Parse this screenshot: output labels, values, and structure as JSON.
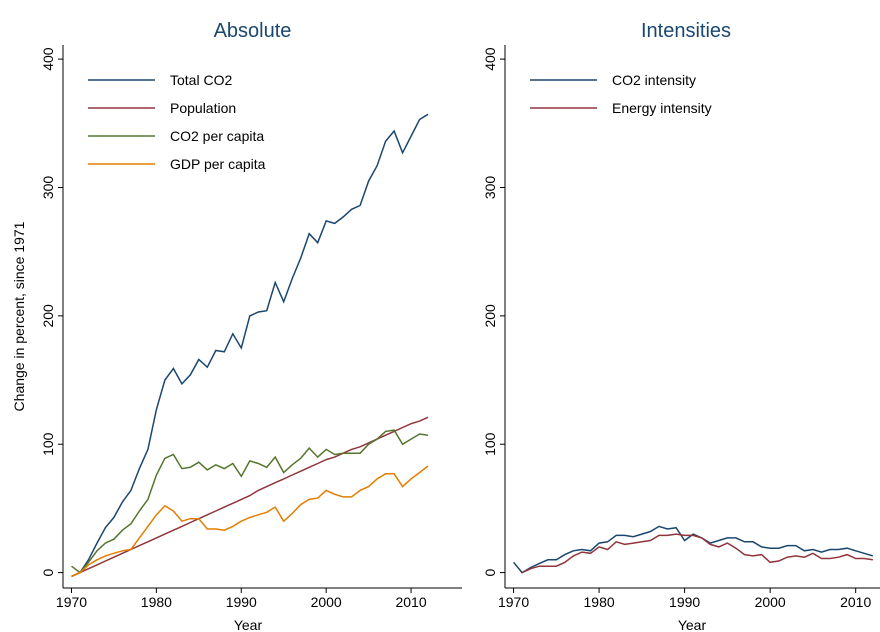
{
  "chart_data": [
    {
      "type": "line",
      "title": "Absolute",
      "y_label": "Change in percent, since 1971",
      "x_label": "Year",
      "x": [
        1970,
        1971,
        1972,
        1973,
        1974,
        1975,
        1976,
        1977,
        1978,
        1979,
        1980,
        1981,
        1982,
        1983,
        1984,
        1985,
        1986,
        1987,
        1988,
        1989,
        1990,
        1991,
        1992,
        1993,
        1994,
        1995,
        1996,
        1997,
        1998,
        1999,
        2000,
        2001,
        2002,
        2003,
        2004,
        2005,
        2006,
        2007,
        2008,
        2009,
        2010,
        2011,
        2012
      ],
      "xlim": [
        1969,
        2016
      ],
      "xticks": [
        1970,
        1980,
        1990,
        2000,
        2010
      ],
      "ylim": [
        -12,
        411
      ],
      "yticks": [
        0,
        100,
        200,
        300,
        400
      ],
      "grid": false,
      "legend": "top-left",
      "series": [
        {
          "name": "Total CO2",
          "color": "#1a476f",
          "values": [
            -3,
            0,
            10,
            23,
            35,
            43,
            55,
            64,
            81,
            96,
            127,
            150,
            159,
            147,
            154,
            166,
            160,
            173,
            172,
            186,
            175,
            200,
            203,
            204,
            226,
            211,
            229,
            245,
            264,
            257,
            274,
            272,
            277,
            283,
            286,
            305,
            317,
            336,
            344,
            327,
            340,
            353,
            357
          ]
        },
        {
          "name": "Population",
          "color": "#90353b",
          "values": [
            -3,
            0,
            3,
            6,
            9,
            12,
            15,
            18,
            21,
            24,
            27,
            30,
            33,
            36,
            39,
            42,
            45,
            48,
            51,
            54,
            57,
            60,
            64,
            67,
            70,
            73,
            76,
            79,
            82,
            85,
            88,
            90,
            93,
            96,
            98,
            101,
            104,
            107,
            110,
            113,
            116,
            118,
            121
          ]
        },
        {
          "name": "CO2 per capita",
          "color": "#55752f",
          "values": [
            5,
            0,
            8,
            17,
            23,
            26,
            33,
            38,
            48,
            57,
            76,
            89,
            92,
            81,
            82,
            86,
            80,
            84,
            81,
            85,
            75,
            87,
            85,
            82,
            90,
            78,
            84,
            89,
            97,
            90,
            96,
            92,
            93,
            93,
            93,
            100,
            104,
            110,
            111,
            100,
            104,
            108,
            107
          ]
        },
        {
          "name": "GDP per capita",
          "color": "#e37e00",
          "values": [
            -3,
            0,
            6,
            10,
            13,
            15,
            17,
            18,
            27,
            36,
            45,
            52,
            48,
            40,
            42,
            42,
            34,
            34,
            33,
            36,
            40,
            43,
            45,
            47,
            51,
            40,
            46,
            53,
            57,
            58,
            64,
            61,
            59,
            59,
            64,
            67,
            73,
            77,
            77,
            67,
            73,
            78,
            83
          ]
        }
      ]
    },
    {
      "type": "line",
      "title": "Intensities",
      "x_label": "Year",
      "x": [
        1970,
        1971,
        1972,
        1973,
        1974,
        1975,
        1976,
        1977,
        1978,
        1979,
        1980,
        1981,
        1982,
        1983,
        1984,
        1985,
        1986,
        1987,
        1988,
        1989,
        1990,
        1991,
        1992,
        1993,
        1994,
        1995,
        1996,
        1997,
        1998,
        1999,
        2000,
        2001,
        2002,
        2003,
        2004,
        2005,
        2006,
        2007,
        2008,
        2009,
        2010,
        2011,
        2012
      ],
      "xlim": [
        1969,
        2016
      ],
      "xticks": [
        1970,
        1980,
        1990,
        2000,
        2010
      ],
      "ylim": [
        -12,
        411
      ],
      "yticks": [
        0,
        100,
        200,
        300,
        400
      ],
      "grid": false,
      "legend": "top-left",
      "series": [
        {
          "name": "CO2 intensity",
          "color": "#1a476f",
          "values": [
            8,
            0,
            4,
            7,
            10,
            10,
            14,
            17,
            18,
            17,
            23,
            24,
            29,
            29,
            28,
            30,
            32,
            36,
            34,
            35,
            25,
            30,
            27,
            23,
            25,
            27,
            27,
            24,
            24,
            20,
            19,
            19,
            21,
            21,
            17,
            18,
            16,
            18,
            18,
            19,
            17,
            15,
            13
          ]
        },
        {
          "name": "Energy intensity",
          "color": "#90353b",
          "values": [
            null,
            0,
            3,
            5,
            5,
            5,
            8,
            13,
            16,
            15,
            20,
            18,
            24,
            22,
            23,
            24,
            25,
            29,
            29,
            30,
            29,
            29,
            27,
            22,
            20,
            23,
            19,
            14,
            13,
            14,
            8,
            9,
            12,
            13,
            12,
            15,
            11,
            11,
            12,
            14,
            11,
            11,
            10
          ]
        }
      ]
    }
  ]
}
